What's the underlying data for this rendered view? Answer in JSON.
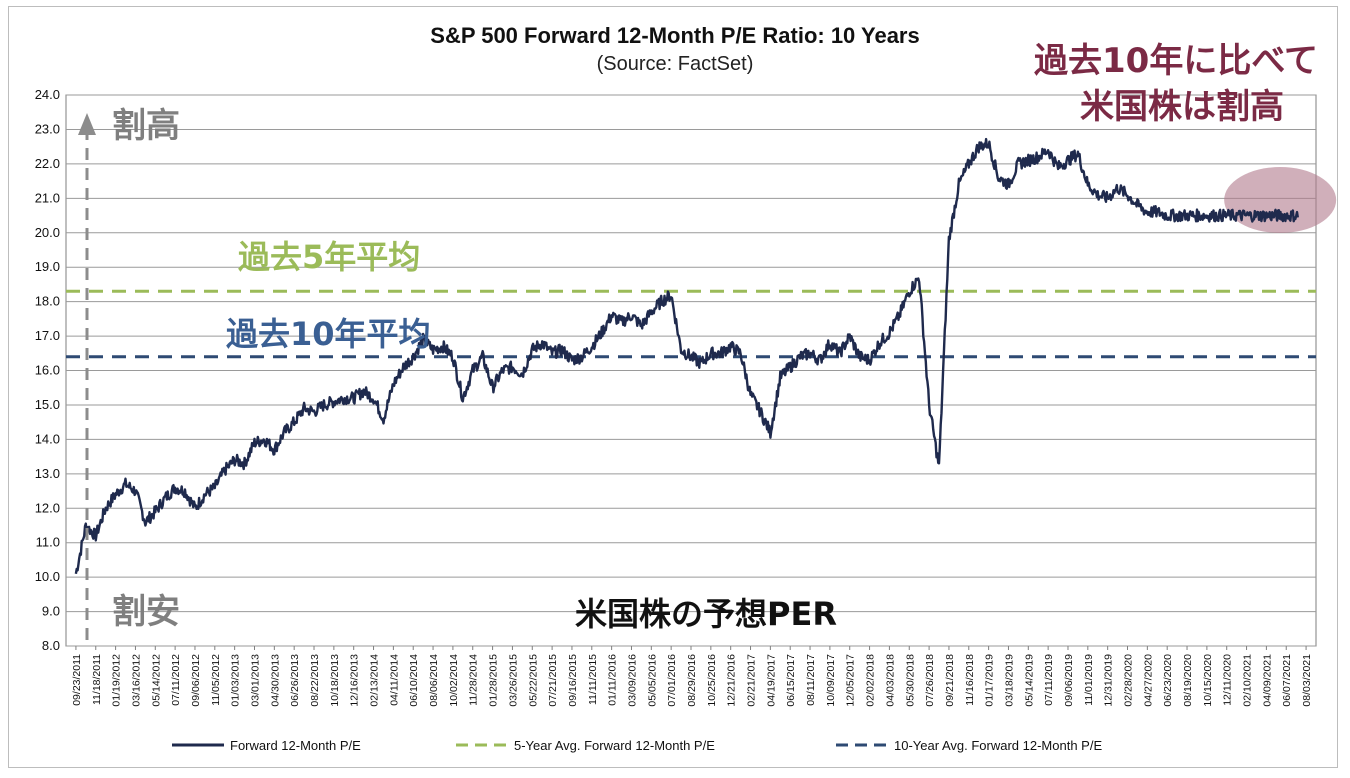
{
  "chart_data": {
    "type": "line",
    "title": "S&P 500 Forward 12-Month P/E Ratio: 10 Years",
    "subtitle": "(Source: FactSet)",
    "ylim": [
      8.0,
      24.0
    ],
    "yticks": [
      "8.0",
      "9.0",
      "10.0",
      "11.0",
      "12.0",
      "13.0",
      "14.0",
      "15.0",
      "16.0",
      "17.0",
      "18.0",
      "19.0",
      "20.0",
      "21.0",
      "22.0",
      "23.0",
      "24.0"
    ],
    "xticks": [
      "09/23/2011",
      "11/18/2011",
      "01/19/2012",
      "03/16/2012",
      "05/14/2012",
      "07/11/2012",
      "09/06/2012",
      "11/05/2012",
      "01/03/2013",
      "03/01/2013",
      "04/30/2013",
      "06/26/2013",
      "08/22/2013",
      "10/18/2013",
      "12/16/2013",
      "02/13/2014",
      "04/11/2014",
      "06/10/2014",
      "08/06/2014",
      "10/02/2014",
      "11/28/2014",
      "01/28/2015",
      "03/26/2015",
      "05/22/2015",
      "07/21/2015",
      "09/16/2015",
      "11/11/2015",
      "01/11/2016",
      "03/09/2016",
      "05/05/2016",
      "07/01/2016",
      "08/29/2016",
      "10/25/2016",
      "12/21/2016",
      "02/21/2017",
      "04/19/2017",
      "06/15/2017",
      "08/11/2017",
      "10/09/2017",
      "12/05/2017",
      "02/02/2018",
      "04/03/2018",
      "05/30/2018",
      "07/26/2018",
      "09/21/2018",
      "11/16/2018",
      "01/17/2019",
      "03/18/2019",
      "05/14/2019",
      "07/11/2019",
      "09/06/2019",
      "11/01/2019",
      "12/31/2019",
      "02/28/2020",
      "04/27/2020",
      "06/23/2020",
      "08/19/2020",
      "10/15/2020",
      "12/11/2020",
      "02/10/2021",
      "04/09/2021",
      "06/07/2021",
      "08/03/2021"
    ],
    "series": [
      {
        "name": "Forward 12-Month P/E",
        "color": "#1f2a4d",
        "style": "solid",
        "x": [
          0,
          0.5,
          1,
          1.5,
          2,
          2.5,
          3,
          3.5,
          4,
          4.5,
          5,
          5.5,
          6,
          6.5,
          7,
          7.5,
          8,
          8.5,
          9,
          9.5,
          10,
          10.5,
          11,
          11.5,
          12,
          12.5,
          13,
          13.5,
          14,
          14.5,
          15,
          15.5,
          16,
          16.5,
          17,
          17.5,
          18,
          18.5,
          19,
          19.5,
          20,
          20.5,
          21,
          21.5,
          22,
          22.5,
          23,
          23.5,
          24,
          24.5,
          25,
          25.5,
          26,
          26.5,
          27,
          27.5,
          28,
          28.5,
          29,
          29.5,
          30,
          30.5,
          31,
          31.5,
          32,
          32.5,
          33,
          33.5,
          34,
          34.5,
          35,
          35.5,
          36,
          36.5,
          37,
          37.5,
          38,
          38.5,
          39,
          39.5,
          40,
          40.5,
          41,
          41.5,
          42,
          42.5,
          43,
          43.5,
          44,
          44.5,
          45,
          45.5,
          46,
          46.5,
          47,
          47.5,
          48,
          48.5,
          49,
          49.5,
          50,
          50.5,
          51,
          51.5,
          52,
          52.5,
          53,
          53.5,
          54,
          54.5,
          55,
          55.5,
          56,
          56.5,
          57,
          57.5,
          58,
          58.5,
          59,
          59.5,
          60,
          60.5,
          61,
          61.5,
          62,
          62.5
        ],
        "values": [
          10.1,
          11.5,
          11.2,
          12.0,
          12.4,
          12.7,
          12.5,
          11.6,
          11.9,
          12.3,
          12.6,
          12.5,
          12.0,
          12.4,
          12.6,
          13.1,
          13.4,
          13.3,
          13.9,
          14.0,
          13.7,
          14.2,
          14.5,
          14.9,
          14.8,
          15.0,
          15.1,
          15.2,
          15.2,
          15.4,
          15.2,
          14.6,
          15.6,
          16.1,
          16.4,
          16.9,
          16.6,
          16.7,
          16.4,
          15.2,
          16.0,
          16.4,
          15.5,
          16.0,
          16.1,
          15.9,
          16.6,
          16.8,
          16.5,
          16.6,
          16.3,
          16.4,
          16.7,
          17.1,
          17.6,
          17.4,
          17.6,
          17.3,
          17.7,
          18.0,
          18.2,
          16.6,
          16.4,
          16.2,
          16.5,
          16.5,
          16.7,
          16.5,
          15.3,
          14.8,
          14.2,
          15.8,
          16.1,
          16.4,
          16.5,
          16.3,
          16.8,
          16.5,
          17.0,
          16.4,
          16.3,
          16.8,
          17.1,
          17.6,
          18.3,
          18.7,
          15.0,
          13.2,
          19.8,
          21.4,
          22.0,
          22.5,
          22.6,
          21.6,
          21.4,
          22.0,
          22.1,
          22.2,
          22.4,
          21.9,
          22.1,
          22.3,
          21.4,
          21.1,
          21.0,
          21.3,
          21.1,
          20.8,
          20.6,
          20.6,
          20.5,
          20.5,
          20.5,
          20.5,
          20.5,
          20.5,
          20.5,
          20.5,
          20.5,
          20.5,
          20.5,
          20.5,
          20.5,
          20.5,
          20.5,
          20.5
        ]
      },
      {
        "name": "5-Year Avg. Forward 12-Month P/E",
        "color": "#9bbb59",
        "style": "dashed",
        "value": 18.3
      },
      {
        "name": "10-Year Avg. Forward 12-Month P/E",
        "color": "#2e4a73",
        "style": "dashed",
        "value": 16.4
      }
    ],
    "legend_position": "bottom",
    "grid": true
  },
  "annotations": {
    "overvalued_label": "割高",
    "undervalued_label": "割安",
    "five_year_label": "過去5年平均",
    "ten_year_label": "過去10年平均",
    "callout_line1": "過去10年に比べて",
    "callout_line2": "米国株は割高",
    "bottom_caption": "米国株の予想PER",
    "colors": {
      "gray": "#7f7f7f",
      "green": "#9bbb59",
      "blue": "#2e4a73",
      "callout": "#7b2a45",
      "highlight": "#b07a8c"
    }
  }
}
